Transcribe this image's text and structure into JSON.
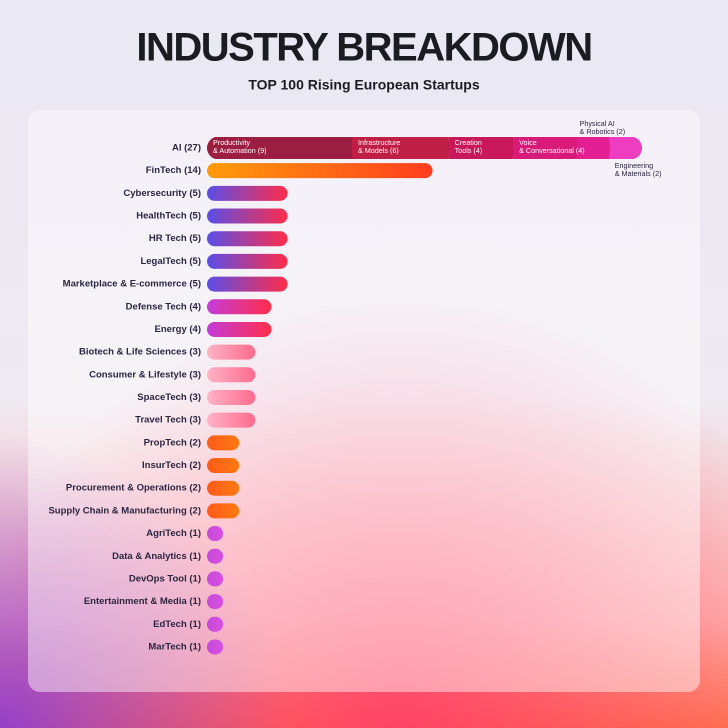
{
  "chart_data": {
    "type": "bar",
    "orientation": "horizontal",
    "title": "INDUSTRY BREAKDOWN",
    "subtitle": "TOP 100 Rising European Startups",
    "categories": [
      "AI (27)",
      "FinTech (14)",
      "Cybersecurity (5)",
      "HealthTech (5)",
      "HR Tech (5)",
      "LegalTech (5)",
      "Marketplace & E-commerce (5)",
      "Defense Tech (4)",
      "Energy (4)",
      "Biotech & Life Sciences (3)",
      "Consumer & Lifestyle (3)",
      "SpaceTech (3)",
      "Travel Tech (3)",
      "PropTech (2)",
      "InsurTech (2)",
      "Procurement & Operations (2)",
      "Supply Chain & Manufacturing (2)",
      "AgriTech (1)",
      "Data & Analytics (1)",
      "DevOps Tool (1)",
      "Entertainment & Media (1)",
      "EdTech (1)",
      "MarTech (1)"
    ],
    "values": [
      27,
      14,
      5,
      5,
      5,
      5,
      5,
      4,
      4,
      3,
      3,
      3,
      3,
      2,
      2,
      2,
      2,
      1,
      1,
      1,
      1,
      1,
      1
    ],
    "colors": [
      [
        "#7a1c3a",
        "#e0245e"
      ],
      [
        "#ff9a0a",
        "#ff3d1f"
      ],
      [
        "#5b4ee6",
        "#ff2d4a"
      ],
      [
        "#5b4ee6",
        "#ff2d4a"
      ],
      [
        "#5b4ee6",
        "#ff2d4a"
      ],
      [
        "#5b4ee6",
        "#ff2d4a"
      ],
      [
        "#5b4ee6",
        "#ff2d4a"
      ],
      [
        "#c43cd8",
        "#ff2d4a"
      ],
      [
        "#c43cd8",
        "#ff2d4a"
      ],
      [
        "#ffb3c6",
        "#ff6b8e"
      ],
      [
        "#ffb3c6",
        "#ff6b8e"
      ],
      [
        "#ffb3c6",
        "#ff6b8e"
      ],
      [
        "#ffb3c6",
        "#ff6b8e"
      ],
      [
        "#ff5a1a",
        "#ff7a10"
      ],
      [
        "#ff5a1a",
        "#ff7a10"
      ],
      [
        "#ff5a1a",
        "#ff7a10"
      ],
      [
        "#ff5a1a",
        "#ff7a10"
      ],
      [
        "#c44ad8",
        "#d950e0"
      ],
      [
        "#c44ad8",
        "#d950e0"
      ],
      [
        "#c44ad8",
        "#d950e0"
      ],
      [
        "#c44ad8",
        "#d950e0"
      ],
      [
        "#c44ad8",
        "#d950e0"
      ],
      [
        "#c44ad8",
        "#d950e0"
      ]
    ],
    "ai_segments": [
      {
        "lines": [
          "Productivity",
          "& Automation (9)"
        ],
        "value": 9,
        "color": "#9b1d3f"
      },
      {
        "lines": [
          "Infrastructure",
          "& Models (6)"
        ],
        "value": 6,
        "color": "#c01f45"
      },
      {
        "lines": [
          "Creation",
          "Tools (4)"
        ],
        "value": 4,
        "color": "#c8185a"
      },
      {
        "lines": [
          "Voice",
          "& Conversational (4)"
        ],
        "value": 4,
        "color": "#d81b78"
      },
      {
        "lines": [
          "Physical AI",
          "& Robotics (2)"
        ],
        "value": 2,
        "color": "#e21e92"
      },
      {
        "lines": [
          "Engineering",
          "& Materials (2)"
        ],
        "value": 2,
        "color": "#ee3dc0"
      }
    ]
  }
}
